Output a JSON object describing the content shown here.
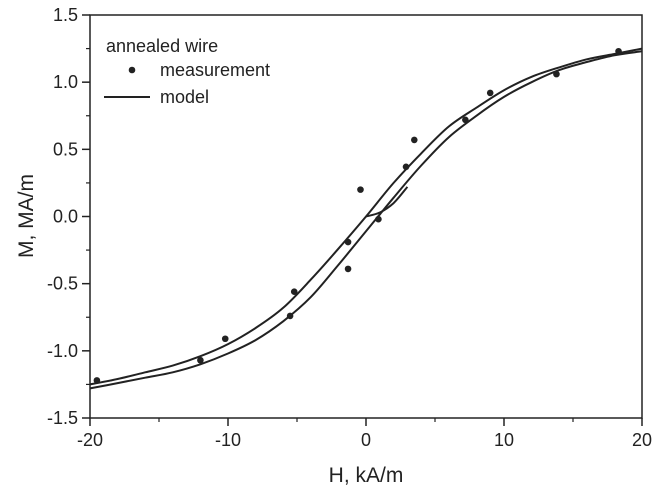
{
  "chart_data": {
    "type": "scatter",
    "xlabel": "H, kA/m",
    "ylabel": "M, MA/m",
    "xlim": [
      -20,
      20
    ],
    "ylim": [
      -1.5,
      1.5
    ],
    "x_ticks": [
      -20,
      -10,
      0,
      10,
      20
    ],
    "y_ticks": [
      -1.5,
      -1.0,
      -0.5,
      0.0,
      0.5,
      1.0,
      1.5
    ],
    "x_tick_labels": [
      "-20",
      "-10",
      "0",
      "10",
      "20"
    ],
    "y_tick_labels": [
      "-1.5",
      "-1.0",
      "-0.5",
      "0.0",
      "0.5",
      "1.0",
      "1.5"
    ],
    "grid": false,
    "legend": {
      "title": "annealed wire",
      "placement": "top-left",
      "entries": [
        {
          "label": "measurement",
          "marker": "dot"
        },
        {
          "label": "model",
          "marker": "line"
        }
      ]
    },
    "series": [
      {
        "name": "measurement",
        "kind": "points",
        "x": [
          -19.5,
          -12,
          -10.2,
          -5.2,
          -5.5,
          -1.3,
          -1.3,
          -0.4,
          0.9,
          2.9,
          3.5,
          7.2,
          9.0,
          13.8,
          18.3
        ],
        "y": [
          -1.22,
          -1.07,
          -0.91,
          -0.56,
          -0.74,
          -0.19,
          -0.39,
          0.2,
          -0.02,
          0.37,
          0.57,
          0.72,
          0.92,
          1.06,
          1.23
        ]
      },
      {
        "name": "model",
        "kind": "line",
        "branches": [
          {
            "x": [
              -20,
              -18,
              -16,
              -14,
              -12,
              -10,
              -8,
              -6,
              -4,
              -2,
              0,
              2,
              4,
              6,
              8,
              10,
              12,
              14,
              16,
              18,
              20
            ],
            "y": [
              -1.25,
              -1.21,
              -1.16,
              -1.11,
              -1.04,
              -0.95,
              -0.83,
              -0.68,
              -0.47,
              -0.24,
              0.0,
              0.25,
              0.47,
              0.67,
              0.81,
              0.94,
              1.04,
              1.11,
              1.17,
              1.21,
              1.25
            ]
          },
          {
            "x": [
              -20,
              -18,
              -16,
              -14,
              -12,
              -10,
              -8,
              -6,
              -4,
              -2,
              0,
              2,
              4,
              6,
              8,
              10,
              12,
              14,
              16,
              18,
              20
            ],
            "y": [
              -1.28,
              -1.24,
              -1.2,
              -1.16,
              -1.1,
              -1.02,
              -0.92,
              -0.78,
              -0.6,
              -0.36,
              -0.11,
              0.14,
              0.38,
              0.59,
              0.75,
              0.89,
              1.0,
              1.09,
              1.15,
              1.2,
              1.23
            ]
          },
          {
            "x": [
              0.0,
              1.0,
              2.0,
              3.0
            ],
            "y": [
              0.0,
              0.03,
              0.1,
              0.22
            ]
          }
        ]
      }
    ]
  },
  "colors": {
    "ink": "#222222",
    "background": "#ffffff"
  }
}
